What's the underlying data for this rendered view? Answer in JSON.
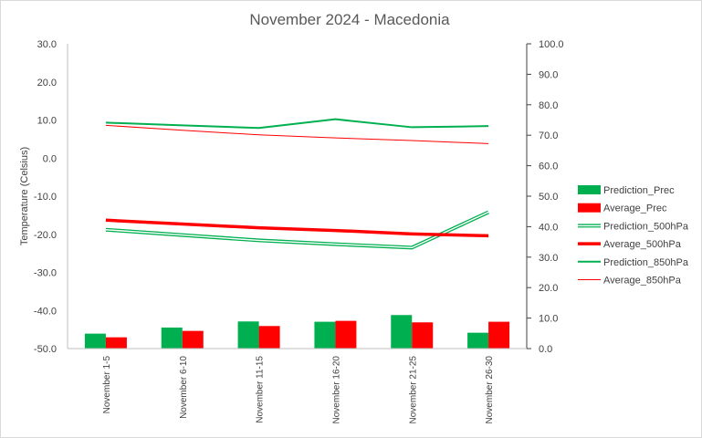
{
  "chart_data": {
    "type": "bar",
    "title": "November 2024 - Macedonia",
    "ylabel": "Temperature (Celsius)",
    "y2label": "",
    "xlabel": "",
    "categories": [
      "November 1-5",
      "November 6-10",
      "November 11-15",
      "November 16-20",
      "November 21-25",
      "November 26-30"
    ],
    "ylim": [
      -50,
      30
    ],
    "y2lim": [
      0,
      100
    ],
    "yticks": [
      "-50.0",
      "-40.0",
      "-30.0",
      "-20.0",
      "-10.0",
      "0.0",
      "10.0",
      "20.0",
      "30.0"
    ],
    "y2ticks": [
      "0.0",
      "10.0",
      "20.0",
      "30.0",
      "40.0",
      "50.0",
      "60.0",
      "70.0",
      "80.0",
      "90.0",
      "100.0"
    ],
    "grid": false,
    "legend_position": "right",
    "series": [
      {
        "name": "Prediction_Prec",
        "kind": "bar",
        "axis": "right",
        "color": "#00b050",
        "values": [
          4.9,
          6.9,
          8.9,
          8.8,
          11.0,
          5.2
        ]
      },
      {
        "name": "Average_Prec",
        "kind": "bar",
        "axis": "right",
        "color": "#ff0000",
        "values": [
          3.7,
          5.8,
          7.4,
          9.1,
          8.6,
          8.8
        ]
      },
      {
        "name": "Prediction_500hPa",
        "kind": "line-double",
        "axis": "left",
        "color": "#00b050",
        "values": [
          -18.8,
          -20.2,
          -21.6,
          -22.6,
          -23.5,
          -14.2
        ]
      },
      {
        "name": "Average_500hPa",
        "kind": "line",
        "axis": "left",
        "color": "#ff0000",
        "width": 3.5,
        "values": [
          -16.3,
          -17.3,
          -18.3,
          -19.0,
          -19.9,
          -20.4
        ]
      },
      {
        "name": "Prediction_850hPa",
        "kind": "line",
        "axis": "left",
        "color": "#00b050",
        "width": 2,
        "values": [
          9.3,
          8.6,
          7.9,
          10.2,
          8.1,
          8.4
        ]
      },
      {
        "name": "Average_850hPa",
        "kind": "line",
        "axis": "left",
        "color": "#ff0000",
        "width": 1,
        "values": [
          8.6,
          7.3,
          6.1,
          5.3,
          4.6,
          3.8
        ]
      }
    ]
  }
}
